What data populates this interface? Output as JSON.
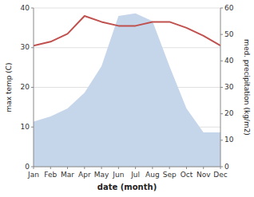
{
  "chart_data": {
    "type": "line",
    "categories": [
      "Jan",
      "Feb",
      "Mar",
      "Apr",
      "May",
      "Jun",
      "Jul",
      "Aug",
      "Sep",
      "Oct",
      "Nov",
      "Dec"
    ],
    "xlabel": "date (month)",
    "ylabel": "max temp (C)",
    "y2label": "med. precipitation (kg/m2)",
    "series": [
      {
        "type": "area",
        "axis": "y2",
        "color": "#c5d5ea",
        "values": [
          17,
          19,
          22,
          28,
          38,
          57,
          58,
          55,
          38,
          22,
          13,
          13
        ]
      },
      {
        "type": "line",
        "color": "#c0504d",
        "values": [
          30.5,
          31.5,
          33.5,
          38.0,
          36.5,
          35.5,
          35.5,
          36.5,
          36.5,
          35.0,
          33.0,
          30.5
        ]
      }
    ],
    "ylim": [
      0,
      40
    ],
    "yticks": [
      0,
      10,
      20,
      30,
      40
    ],
    "y2lim": [
      0,
      60
    ],
    "y2ticks": [
      0,
      10,
      20,
      30,
      40,
      50,
      60
    ],
    "grid": true
  }
}
